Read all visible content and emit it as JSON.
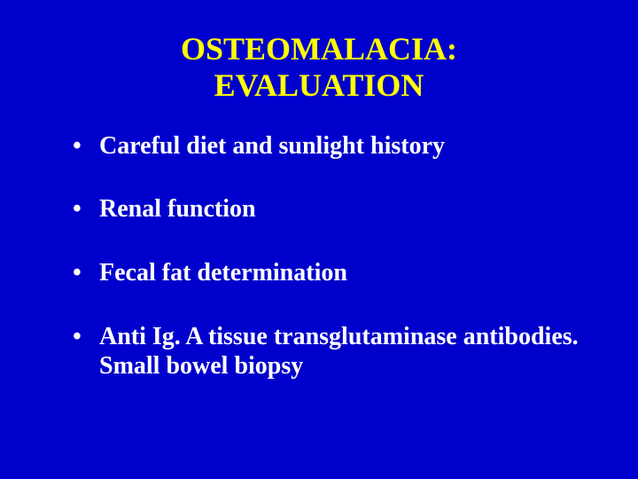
{
  "slide": {
    "background_color": "#0000cc",
    "title_color": "#ffff00",
    "text_color": "#ffffff",
    "title_line1": "OSTEOMALACIA:",
    "title_line2": "EVALUATION",
    "title_fontsize": 36,
    "body_fontsize": 28,
    "font_family": "Times New Roman",
    "bullets": [
      "Careful diet and sunlight history",
      "Renal function",
      "Fecal fat determination",
      "Anti Ig. A tissue transglutaminase antibodies.  Small bowel biopsy"
    ]
  }
}
